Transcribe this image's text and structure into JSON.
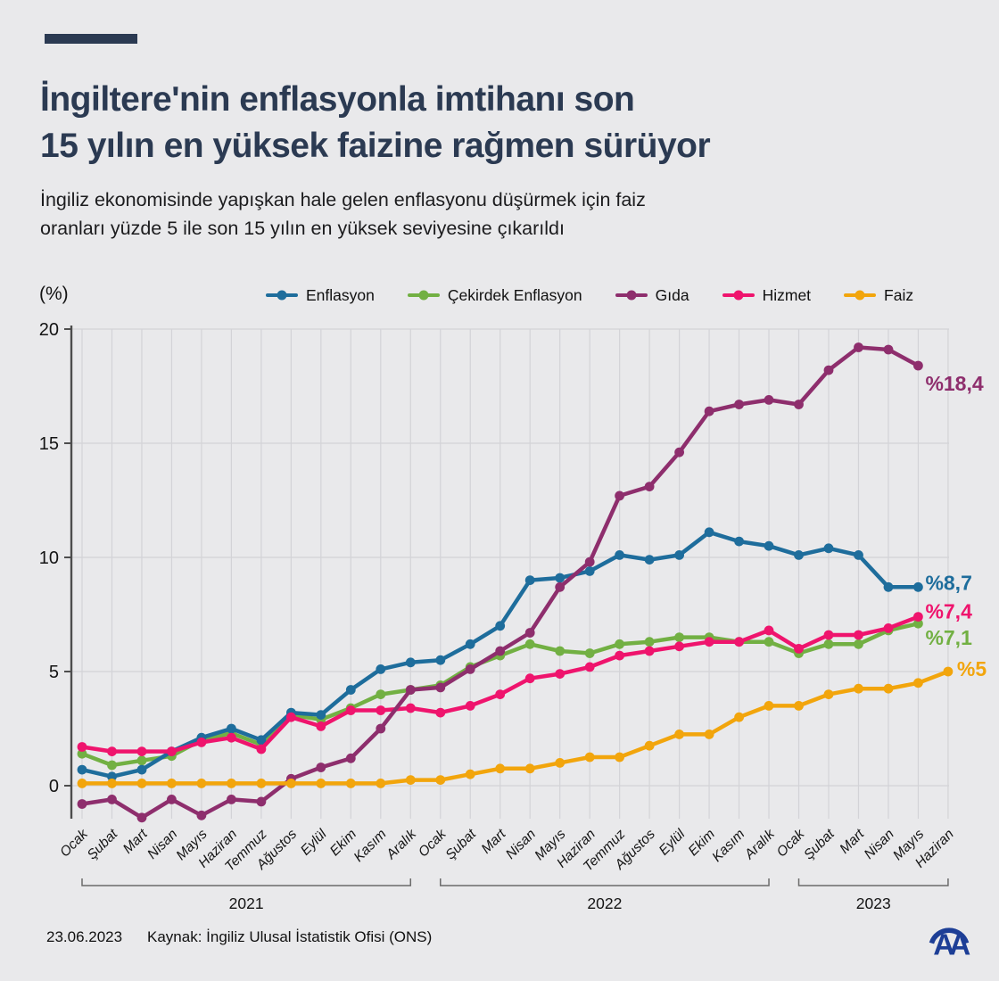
{
  "header": {
    "title_line1": "İngiltere'nin enflasyonla imtihanı son",
    "title_line2": "15 yılın en yüksek faizine rağmen sürüyor",
    "subtitle_line1": "İngiliz ekonomisinde yapışkan hale gelen enflasyonu düşürmek için faiz",
    "subtitle_line2": "oranları yüzde 5 ile son 15 yılın en yüksek seviyesine çıkarıldı"
  },
  "footer": {
    "date": "23.06.2023",
    "source": "Kaynak: İngiliz Ulusal İstatistik Ofisi (ONS)",
    "logo_text": "AA"
  },
  "chart_data": {
    "type": "line",
    "unit_label": "(%)",
    "grid": true,
    "legend_position": "top",
    "y_ticks": [
      0,
      5,
      10,
      15,
      20
    ],
    "ylim": [
      -2,
      20
    ],
    "x": [
      "Ocak",
      "Şubat",
      "Mart",
      "Nisan",
      "Mayıs",
      "Haziran",
      "Temmuz",
      "Ağustos",
      "Eylül",
      "Ekim",
      "Kasım",
      "Aralık",
      "Ocak",
      "Şubat",
      "Mart",
      "Nisan",
      "Mayıs",
      "Haziran",
      "Temmuz",
      "Ağustos",
      "Eylül",
      "Ekim",
      "Kasım",
      "Aralık",
      "Ocak",
      "Şubat",
      "Mart",
      "Nisan",
      "Mayıs",
      "Haziran"
    ],
    "year_groups": [
      {
        "label": "2021",
        "from": 0,
        "to": 11
      },
      {
        "label": "2022",
        "from": 12,
        "to": 23
      },
      {
        "label": "2023",
        "from": 24,
        "to": 29
      }
    ],
    "series": [
      {
        "name": "Enflasyon",
        "color": "#1e6d9c",
        "callout": "%8,7",
        "values": [
          0.7,
          0.4,
          0.7,
          1.5,
          2.1,
          2.5,
          2.0,
          3.2,
          3.1,
          4.2,
          5.1,
          5.4,
          5.5,
          6.2,
          7.0,
          9.0,
          9.1,
          9.4,
          10.1,
          9.9,
          10.1,
          11.1,
          10.7,
          10.5,
          10.1,
          10.4,
          10.1,
          8.7,
          8.7,
          null
        ]
      },
      {
        "name": "Çekirdek Enflasyon",
        "color": "#72b043",
        "callout": "%7,1",
        "values": [
          1.4,
          0.9,
          1.1,
          1.3,
          2.0,
          2.3,
          1.8,
          3.1,
          2.9,
          3.4,
          4.0,
          4.2,
          4.4,
          5.2,
          5.7,
          6.2,
          5.9,
          5.8,
          6.2,
          6.3,
          6.5,
          6.5,
          6.3,
          6.3,
          5.8,
          6.2,
          6.2,
          6.8,
          7.1,
          null
        ]
      },
      {
        "name": "Gıda",
        "color": "#8e2e6d",
        "callout": "%18,4",
        "values": [
          -0.8,
          -0.6,
          -1.4,
          -0.6,
          -1.3,
          -0.6,
          -0.7,
          0.3,
          0.8,
          1.2,
          2.5,
          4.2,
          4.3,
          5.1,
          5.9,
          6.7,
          8.7,
          9.8,
          12.7,
          13.1,
          14.6,
          16.4,
          16.7,
          16.9,
          16.7,
          18.2,
          19.2,
          19.1,
          18.4,
          null
        ]
      },
      {
        "name": "Hizmet",
        "color": "#ef146d",
        "callout": "%7,4",
        "values": [
          1.7,
          1.5,
          1.5,
          1.5,
          1.9,
          2.1,
          1.6,
          3.0,
          2.6,
          3.3,
          3.3,
          3.4,
          3.2,
          3.5,
          4.0,
          4.7,
          4.9,
          5.2,
          5.7,
          5.9,
          6.1,
          6.3,
          6.3,
          6.8,
          6.0,
          6.6,
          6.6,
          6.9,
          7.4,
          null
        ]
      },
      {
        "name": "Faiz",
        "color": "#f2a50c",
        "callout": "%5",
        "values": [
          0.1,
          0.1,
          0.1,
          0.1,
          0.1,
          0.1,
          0.1,
          0.1,
          0.1,
          0.1,
          0.1,
          0.25,
          0.25,
          0.5,
          0.75,
          0.75,
          1.0,
          1.25,
          1.25,
          1.75,
          2.25,
          2.25,
          3.0,
          3.5,
          3.5,
          4.0,
          4.25,
          4.25,
          4.5,
          5.0
        ]
      }
    ]
  }
}
